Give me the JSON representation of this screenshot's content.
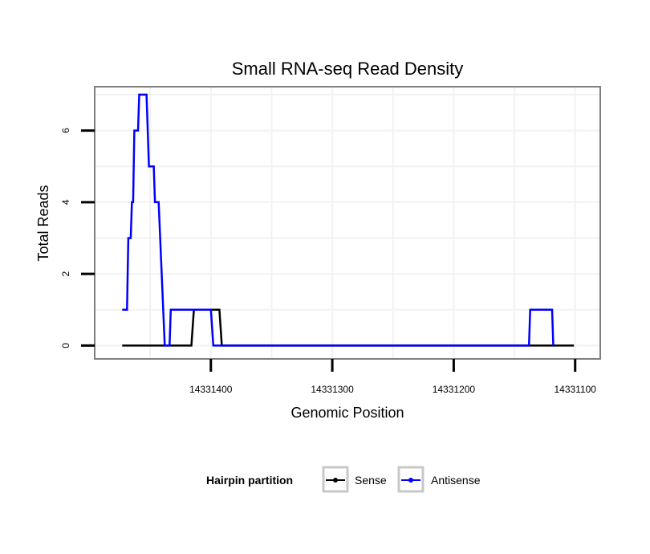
{
  "chart_data": {
    "type": "line",
    "title": "Small RNA-seq Read Density",
    "xlabel": "Genomic Position",
    "ylabel": "Total Reads",
    "xlim": [
      14331495,
      14331080
    ],
    "ylim": [
      -0.35,
      7.2
    ],
    "x_reversed": true,
    "grid": true,
    "x_ticks": [
      14331400,
      14331300,
      14331200,
      14331100
    ],
    "x_tick_labels": [
      "14331400",
      "14331300",
      "14331200",
      "14331100"
    ],
    "y_ticks": [
      0,
      2,
      4,
      6
    ],
    "y_tick_labels": [
      "0",
      "2",
      "4",
      "6"
    ],
    "legend": {
      "title": "Hairpin partition",
      "position": "bottom",
      "entries": [
        {
          "label": "Sense",
          "color": "#000000"
        },
        {
          "label": "Antisense",
          "color": "#0000ff"
        }
      ]
    },
    "series": [
      {
        "name": "Sense",
        "color": "#000000",
        "points": [
          [
            14331473,
            0
          ],
          [
            14331416,
            0
          ],
          [
            14331414,
            1
          ],
          [
            14331393,
            1
          ],
          [
            14331391,
            0
          ],
          [
            14331101,
            0
          ]
        ]
      },
      {
        "name": "Antisense",
        "color": "#0000ff",
        "points": [
          [
            14331473,
            1
          ],
          [
            14331469,
            1
          ],
          [
            14331468,
            3
          ],
          [
            14331466,
            3
          ],
          [
            14331465,
            4
          ],
          [
            14331464,
            4
          ],
          [
            14331463,
            6
          ],
          [
            14331460,
            6
          ],
          [
            14331459,
            7
          ],
          [
            14331453,
            7
          ],
          [
            14331451,
            5
          ],
          [
            14331447,
            5
          ],
          [
            14331446,
            4
          ],
          [
            14331443,
            4
          ],
          [
            14331438,
            0
          ],
          [
            14331434,
            0
          ],
          [
            14331433,
            1
          ],
          [
            14331400,
            1
          ],
          [
            14331398,
            0
          ],
          [
            14331138,
            0
          ],
          [
            14331137,
            1
          ],
          [
            14331119,
            1
          ],
          [
            14331118,
            0
          ]
        ]
      }
    ]
  }
}
